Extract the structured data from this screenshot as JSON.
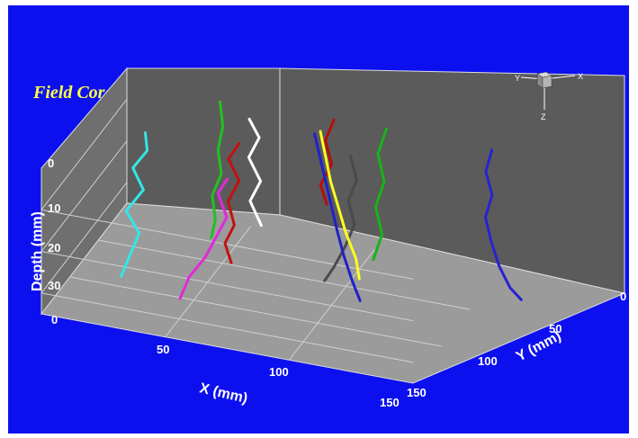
{
  "chart_data": {
    "type": "line3d",
    "title": "Field Cores",
    "x_axis": {
      "label": "X (mm)",
      "range": [
        0,
        150
      ],
      "ticks": [
        "0",
        "50",
        "100",
        "150"
      ]
    },
    "y_axis": {
      "label": "Y (mm)",
      "range": [
        0,
        150
      ],
      "ticks": [
        "0",
        "50",
        "100",
        "150"
      ]
    },
    "z_axis": {
      "label": "Depth (mm)",
      "range": [
        0,
        35
      ],
      "ticks": [
        "0",
        "10",
        "20",
        "30"
      ]
    },
    "orientation_labels": {
      "x": "X",
      "y": "Y",
      "z": "Z"
    },
    "grid": true,
    "colors": {
      "background": "#0d10ee",
      "floor": "#9b9b9b",
      "back_wall": "#5b5b5b",
      "side_wall": "#6f6f6f",
      "title": "#ffff44"
    },
    "series": [
      {
        "color": "#33e6e6",
        "points": [
          [
            27,
            85,
            0
          ],
          [
            28,
            86,
            4
          ],
          [
            22,
            85,
            9
          ],
          [
            26,
            84,
            14
          ],
          [
            20,
            88,
            19
          ],
          [
            25,
            87,
            24
          ],
          [
            22,
            90,
            29
          ],
          [
            19,
            93,
            34
          ]
        ]
      },
      {
        "color": "#e02ad8",
        "points": [
          [
            64,
            102,
            4
          ],
          [
            60,
            101,
            8
          ],
          [
            64,
            103,
            13
          ],
          [
            60,
            104,
            18
          ],
          [
            56,
            106,
            23
          ],
          [
            50,
            108,
            28
          ],
          [
            47,
            111,
            33
          ]
        ]
      },
      {
        "color": "#c41010",
        "points": [
          [
            63,
            77,
            0
          ],
          [
            59,
            78,
            4
          ],
          [
            63,
            77,
            9
          ],
          [
            59,
            79,
            14
          ],
          [
            62,
            81,
            19
          ],
          [
            58,
            80,
            24
          ],
          [
            61,
            82,
            28
          ]
        ]
      },
      {
        "color": "#ffffff",
        "points": [
          [
            60,
            46,
            0
          ],
          [
            64,
            46,
            4
          ],
          [
            60,
            47,
            9
          ],
          [
            65,
            48,
            14
          ],
          [
            61,
            49,
            19
          ],
          [
            66,
            51,
            24
          ]
        ]
      },
      {
        "color": "#22c022",
        "points": [
          [
            45,
            32,
            0
          ],
          [
            47,
            36,
            5
          ],
          [
            46,
            40,
            10
          ],
          [
            48,
            43,
            15
          ],
          [
            45,
            46,
            20
          ],
          [
            47,
            49,
            25
          ],
          [
            46,
            52,
            29
          ]
        ]
      },
      {
        "color": "#4a4a4a",
        "points": [
          [
            99,
            38,
            6
          ],
          [
            102,
            40,
            11
          ],
          [
            99,
            42,
            16
          ],
          [
            102,
            44,
            21
          ],
          [
            99,
            47,
            26
          ],
          [
            95,
            50,
            31
          ],
          [
            92,
            53,
            34
          ]
        ]
      },
      {
        "color": "#b40e0e",
        "points": [
          [
            90,
            28,
            0
          ],
          [
            87,
            30,
            5
          ],
          [
            90,
            32,
            10
          ],
          [
            86,
            34,
            15
          ],
          [
            89,
            36,
            19
          ]
        ]
      },
      {
        "color": "#ffff22",
        "points": [
          [
            85,
            30,
            3
          ],
          [
            88,
            34,
            8
          ],
          [
            91,
            38,
            13
          ],
          [
            95,
            42,
            18
          ],
          [
            99,
            46,
            23
          ],
          [
            104,
            50,
            28
          ],
          [
            106,
            53,
            32
          ]
        ]
      },
      {
        "color": "#1f22c8",
        "points": [
          [
            87,
            49,
            0
          ],
          [
            90,
            52,
            5
          ],
          [
            93,
            55,
            10
          ],
          [
            96,
            58,
            15
          ],
          [
            99,
            61,
            20
          ],
          [
            102,
            63,
            25
          ],
          [
            106,
            66,
            30
          ],
          [
            110,
            69,
            34
          ]
        ]
      },
      {
        "color": "#17b417",
        "points": [
          [
            111,
            27,
            0
          ],
          [
            108,
            29,
            6
          ],
          [
            111,
            31,
            12
          ],
          [
            108,
            33,
            18
          ],
          [
            111,
            35,
            24
          ],
          [
            108,
            37,
            30
          ]
        ]
      },
      {
        "color": "#2424d2",
        "points": [
          [
            154,
            29,
            0
          ],
          [
            152,
            31,
            5
          ],
          [
            155,
            33,
            10
          ],
          [
            153,
            36,
            15
          ],
          [
            156,
            39,
            20
          ],
          [
            160,
            42,
            25
          ],
          [
            165,
            45,
            29
          ],
          [
            170,
            47,
            31
          ]
        ]
      }
    ]
  }
}
